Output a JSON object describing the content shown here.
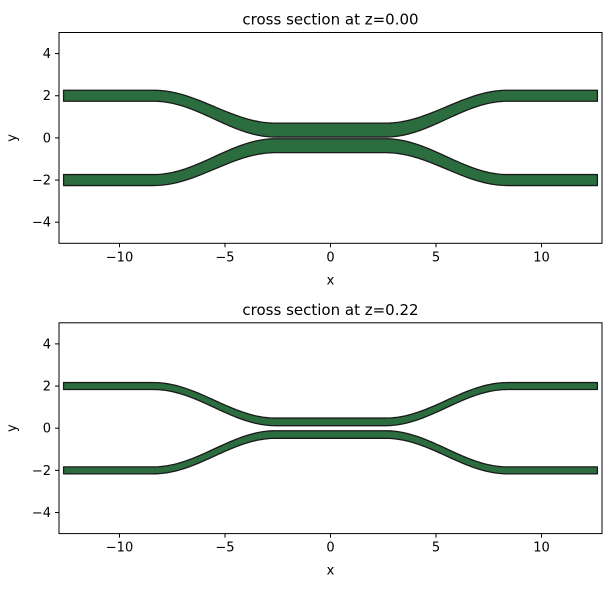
{
  "figure": {
    "background": "#ffffff"
  },
  "colors": {
    "waveguide_fill": "#2b6d3f",
    "waveguide_edge": "#1a1a1a",
    "axis": "#000000",
    "text": "#000000"
  },
  "chart_data": [
    {
      "type": "area",
      "title": "cross section at z=0.00",
      "xlabel": "x",
      "ylabel": "y",
      "xlim": [
        -12.9,
        12.9
      ],
      "ylim": [
        -5,
        5
      ],
      "xticks": [
        -10,
        -5,
        0,
        5,
        10
      ],
      "yticks": [
        4,
        2,
        0,
        -2,
        -4
      ],
      "grid": false,
      "legend": null,
      "structure": {
        "description": "directional-coupler cross section: two mirrored waveguide bands (upper +y arm, lower -y arm), filled green with black edge",
        "x_extent": 12.65,
        "outer_center_y": 2.0,
        "inner_center_y": 0.37,
        "bend_region": [
          2.6,
          8.4
        ],
        "bend_profile": "cosine",
        "band_width_outer": 0.52,
        "band_width_inner": 0.66,
        "arms": [
          "+y",
          "-y"
        ],
        "centerline_samples": {
          "x": [
            0,
            2.6,
            3,
            4,
            5,
            6,
            7,
            8,
            8.4,
            10,
            12.65
          ],
          "y": [
            0.37,
            0.37,
            0.389,
            0.593,
            0.967,
            1.403,
            1.777,
            1.981,
            2.0,
            2.0,
            2.0
          ]
        }
      }
    },
    {
      "type": "area",
      "title": "cross section at z=0.22",
      "xlabel": "x",
      "ylabel": "y",
      "xlim": [
        -12.9,
        12.9
      ],
      "ylim": [
        -5,
        5
      ],
      "xticks": [
        -10,
        -5,
        0,
        5,
        10
      ],
      "yticks": [
        4,
        2,
        0,
        -2,
        -4
      ],
      "grid": false,
      "legend": null,
      "structure": {
        "description": "same coupler at z=0.22 (narrower bands due to sidewall slope)",
        "x_extent": 12.65,
        "outer_center_y": 2.0,
        "inner_center_y": 0.3,
        "bend_region": [
          2.6,
          8.4
        ],
        "bend_profile": "cosine",
        "band_width_outer": 0.33,
        "band_width_inner": 0.36,
        "arms": [
          "+y",
          "-y"
        ],
        "centerline_samples": {
          "x": [
            0,
            2.6,
            3,
            4,
            5,
            6,
            7,
            8,
            8.4,
            10,
            12.65
          ],
          "y": [
            0.3,
            0.3,
            0.32,
            0.533,
            0.923,
            1.377,
            1.767,
            1.98,
            2.0,
            2.0,
            2.0
          ]
        }
      }
    }
  ]
}
